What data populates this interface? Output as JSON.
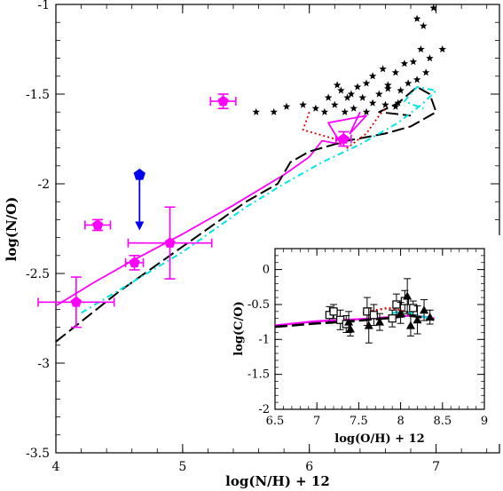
{
  "chart_data": [
    {
      "type": "line",
      "xlabel": "log(N/H) + 12",
      "ylabel": "log(N/O)",
      "xlim": [
        4,
        7.5
      ],
      "ylim": [
        -3.5,
        -1
      ],
      "xticks": [
        4,
        5,
        6,
        7
      ],
      "yticks": [
        -3.5,
        -3,
        -2.5,
        -2,
        -1.5,
        -1
      ],
      "tick_labels_x": [
        "4",
        "5",
        "6",
        "7"
      ],
      "tick_labels_y": [
        "-3.5",
        "-3",
        "-2.5",
        "-2",
        "-1.5",
        "-1"
      ],
      "colors": {
        "magenta": "#ff00ff",
        "black": "#000000",
        "cyan": "#00e5e5",
        "red": "#dd0000",
        "blue": "#0000ee"
      },
      "series": [
        {
          "style": "magenta-solid",
          "x": [
            4.0,
            4.3,
            4.6,
            5.0,
            5.4,
            5.8,
            6.0,
            6.1,
            6.25,
            6.15,
            6.3,
            6.45,
            6.32,
            6.4
          ],
          "y": [
            -2.68,
            -2.55,
            -2.43,
            -2.28,
            -2.12,
            -1.95,
            -1.85,
            -1.76,
            -1.78,
            -1.66,
            -1.64,
            -1.62,
            -1.72,
            -1.6
          ]
        },
        {
          "style": "black-longdash",
          "x": [
            4.0,
            4.5,
            5.0,
            5.5,
            5.75,
            5.85,
            6.0,
            6.3,
            6.6,
            6.8,
            7.0,
            6.95,
            6.85,
            6.7,
            6.55,
            6.8
          ],
          "y": [
            -2.88,
            -2.6,
            -2.35,
            -2.1,
            -2.0,
            -1.88,
            -1.82,
            -1.76,
            -1.72,
            -1.68,
            -1.6,
            -1.5,
            -1.46,
            -1.55,
            -1.6,
            -1.62
          ]
        },
        {
          "style": "cyan-dashdot",
          "x": [
            4.2,
            4.6,
            5.0,
            5.5,
            5.8,
            6.1,
            6.4,
            6.7,
            6.9,
            7.0,
            6.85,
            6.75,
            6.9
          ],
          "y": [
            -2.72,
            -2.55,
            -2.38,
            -2.13,
            -2.0,
            -1.88,
            -1.78,
            -1.66,
            -1.55,
            -1.48,
            -1.46,
            -1.54,
            -1.58
          ]
        },
        {
          "style": "red-dotted",
          "x": [
            6.0,
            5.95,
            6.05,
            6.2,
            6.3,
            6.45,
            6.55,
            6.6
          ],
          "y": [
            -1.6,
            -1.7,
            -1.72,
            -1.75,
            -1.8,
            -1.72,
            -1.62,
            -1.58
          ]
        }
      ],
      "points_magenta": [
        {
          "x": 4.16,
          "y": -2.66,
          "xerr": 0.3,
          "yerr": 0.14
        },
        {
          "x": 4.33,
          "y": -2.23,
          "xerr": 0.1,
          "yerr": 0.03
        },
        {
          "x": 4.62,
          "y": -2.44,
          "xerr": 0.07,
          "yerr": 0.04
        },
        {
          "x": 4.9,
          "y": -2.33,
          "xerr": 0.33,
          "yerr": 0.2
        },
        {
          "x": 5.32,
          "y": -1.54,
          "xerr": 0.1,
          "yerr": 0.04
        },
        {
          "x": 6.27,
          "y": -1.75,
          "xerr": 0.06,
          "yerr": 0.04
        }
      ],
      "upper_limit_blue": {
        "x": 4.66,
        "y": -1.95,
        "y_end": -2.26
      },
      "stars": [
        {
          "x": 5.58,
          "y": -1.6
        },
        {
          "x": 5.72,
          "y": -1.6
        },
        {
          "x": 5.82,
          "y": -1.57
        },
        {
          "x": 5.95,
          "y": -1.56
        },
        {
          "x": 6.05,
          "y": -1.58
        },
        {
          "x": 6.12,
          "y": -1.6
        },
        {
          "x": 6.2,
          "y": -1.56
        },
        {
          "x": 6.28,
          "y": -1.6
        },
        {
          "x": 6.35,
          "y": -1.58
        },
        {
          "x": 6.45,
          "y": -1.6
        },
        {
          "x": 6.5,
          "y": -1.55
        },
        {
          "x": 6.6,
          "y": -1.56
        },
        {
          "x": 6.68,
          "y": -1.57
        },
        {
          "x": 6.25,
          "y": -1.48
        },
        {
          "x": 6.3,
          "y": -1.52
        },
        {
          "x": 6.38,
          "y": -1.46
        },
        {
          "x": 6.42,
          "y": -1.52
        },
        {
          "x": 6.55,
          "y": -1.5
        },
        {
          "x": 6.62,
          "y": -1.45
        },
        {
          "x": 6.72,
          "y": -1.48
        },
        {
          "x": 6.78,
          "y": -1.44
        },
        {
          "x": 6.85,
          "y": -1.42
        },
        {
          "x": 6.92,
          "y": -1.38
        },
        {
          "x": 6.5,
          "y": -1.4
        },
        {
          "x": 6.58,
          "y": -1.36
        },
        {
          "x": 6.68,
          "y": -1.38
        },
        {
          "x": 6.75,
          "y": -1.33
        },
        {
          "x": 6.82,
          "y": -1.32
        },
        {
          "x": 6.88,
          "y": -1.25
        },
        {
          "x": 6.95,
          "y": -1.3
        },
        {
          "x": 6.62,
          "y": -1.47
        },
        {
          "x": 6.45,
          "y": -1.44
        },
        {
          "x": 6.98,
          "y": -1.02
        },
        {
          "x": 7.05,
          "y": -1.25
        },
        {
          "x": 6.85,
          "y": -1.08
        },
        {
          "x": 6.9,
          "y": -1.12
        },
        {
          "x": 6.15,
          "y": -1.52
        },
        {
          "x": 6.22,
          "y": -1.45
        },
        {
          "x": 6.33,
          "y": -1.5
        },
        {
          "x": 6.7,
          "y": -1.55
        }
      ]
    },
    {
      "type": "scatter",
      "xlabel": "log(O/H) + 12",
      "ylabel": "log(C/O)",
      "xlim": [
        6.5,
        9
      ],
      "ylim": [
        -2,
        0.3
      ],
      "xticks": [
        6.5,
        7,
        7.5,
        8,
        8.5,
        9
      ],
      "yticks": [
        -2,
        -1.5,
        -1,
        -0.5,
        0
      ],
      "tick_labels_x": [
        "6.5",
        "7",
        "7.5",
        "8",
        "8.5",
        "9"
      ],
      "tick_labels_y": [
        "-2",
        "-1.5",
        "-1",
        "-0.5",
        "0"
      ],
      "series": [
        {
          "style": "magenta-solid",
          "x": [
            6.5,
            7.0,
            7.5,
            7.9,
            8.1,
            8.3,
            8.4
          ],
          "y": [
            -0.8,
            -0.74,
            -0.71,
            -0.68,
            -0.66,
            -0.68,
            -0.7
          ]
        },
        {
          "style": "black-longdash",
          "x": [
            6.5,
            7.0,
            7.5,
            7.9,
            8.1,
            8.3,
            8.4
          ],
          "y": [
            -0.82,
            -0.77,
            -0.73,
            -0.69,
            -0.66,
            -0.69,
            -0.72
          ]
        },
        {
          "style": "cyan-dashdot",
          "x": [
            7.9,
            8.05,
            8.2,
            8.35
          ],
          "y": [
            -0.62,
            -0.6,
            -0.65,
            -0.7
          ]
        },
        {
          "style": "red-dotted",
          "x": [
            7.55,
            7.7,
            7.85,
            8.0,
            8.1
          ],
          "y": [
            -0.62,
            -0.58,
            -0.55,
            -0.58,
            -0.62
          ]
        }
      ],
      "points_open_squares": [
        {
          "x": 7.15,
          "y": -0.65,
          "err": 0.12
        },
        {
          "x": 7.2,
          "y": -0.6,
          "err": 0.1
        },
        {
          "x": 7.28,
          "y": -0.72,
          "err": 0.14
        },
        {
          "x": 7.35,
          "y": -0.78,
          "err": 0.12
        },
        {
          "x": 7.6,
          "y": -0.6,
          "err": 0.2
        },
        {
          "x": 7.68,
          "y": -0.65,
          "err": 0.15
        },
        {
          "x": 7.95,
          "y": -0.5,
          "err": 0.15
        },
        {
          "x": 8.05,
          "y": -0.45,
          "err": 0.15
        },
        {
          "x": 8.15,
          "y": -0.55,
          "err": 0.1
        },
        {
          "x": 7.9,
          "y": -0.7,
          "err": 0.12
        }
      ],
      "points_filled_triangles": [
        {
          "x": 7.4,
          "y": -0.85,
          "err": 0.1
        },
        {
          "x": 7.62,
          "y": -0.8,
          "err": 0.25
        },
        {
          "x": 8.0,
          "y": -0.62,
          "err": 0.15
        },
        {
          "x": 8.08,
          "y": -0.38,
          "err": 0.25
        },
        {
          "x": 8.2,
          "y": -0.72,
          "err": 0.2
        },
        {
          "x": 8.28,
          "y": -0.58,
          "err": 0.15
        },
        {
          "x": 8.35,
          "y": -0.68,
          "err": 0.1
        },
        {
          "x": 8.12,
          "y": -0.8,
          "err": 0.15
        },
        {
          "x": 7.75,
          "y": -0.75,
          "err": 0.12
        },
        {
          "x": 7.38,
          "y": -0.75,
          "err": 0.15
        }
      ]
    }
  ]
}
